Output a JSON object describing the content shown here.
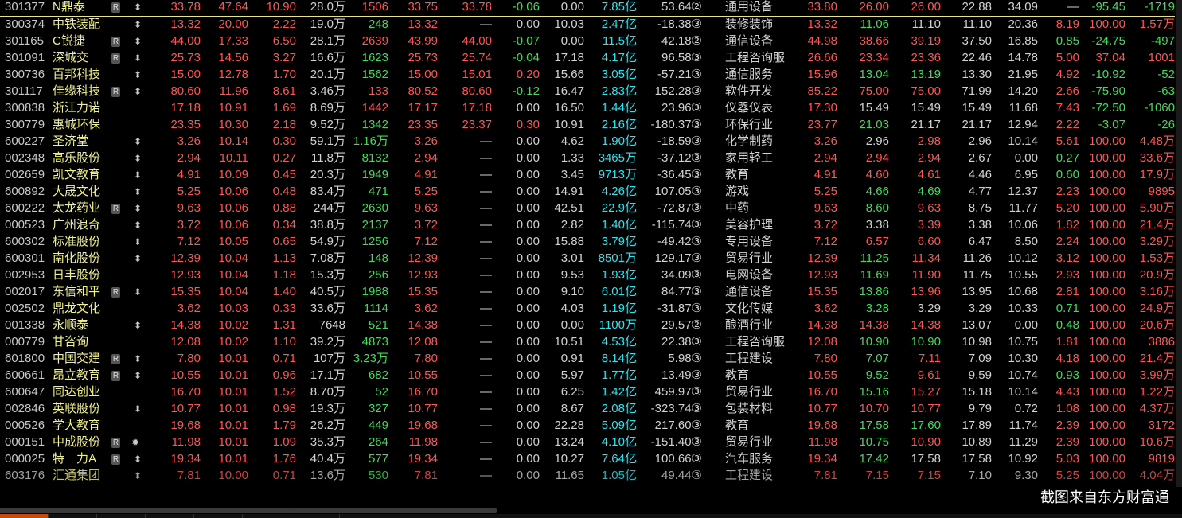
{
  "colors": {
    "up": "#ff5555",
    "down": "#3fdc5a",
    "flat": "#d2d2d2",
    "market_cap": "#22e8f2",
    "name": "#f2f28a",
    "active_tab": "#c84a0a"
  },
  "badge_label": "R",
  "watermark": "截图来自东方财富通",
  "rows": [
    [
      "301377",
      "N鼎泰",
      true,
      "updown",
      "33.78",
      "47.64",
      "10.90",
      "28.0万",
      "1506",
      "up",
      "33.75",
      "33.78",
      "-0.06",
      "0.00",
      "7.85亿",
      "53.64",
      "②",
      "通用设备",
      "33.80",
      "26.00",
      "26.00",
      "22.88",
      "34.09",
      "—",
      "-95.45",
      "-1719"
    ],
    [
      "300374",
      "中铁装配",
      false,
      "updown",
      "13.32",
      "20.00",
      "2.22",
      "19.0万",
      "248",
      "down",
      "13.32",
      "—",
      "0.00",
      "10.03",
      "2.47亿",
      "-18.38",
      "③",
      "装修装饰",
      "13.32",
      "11.06",
      "11.10",
      "11.10",
      "20.36",
      "8.19",
      "100.00",
      "1.57万"
    ],
    [
      "301165",
      "C锐捷",
      true,
      "updown",
      "44.00",
      "17.33",
      "6.50",
      "28.1万",
      "2639",
      "up",
      "43.99",
      "44.00",
      "-0.07",
      "0.00",
      "11.5亿",
      "42.18",
      "②",
      "通信设备",
      "44.98",
      "38.66",
      "39.19",
      "37.50",
      "16.85",
      "0.85",
      "-24.75",
      "-497"
    ],
    [
      "301091",
      "深城交",
      true,
      "updown",
      "25.73",
      "14.56",
      "3.27",
      "16.6万",
      "1623",
      "down",
      "25.73",
      "25.74",
      "-0.04",
      "17.18",
      "4.17亿",
      "96.58",
      "③",
      "工程咨询服",
      "26.66",
      "23.34",
      "23.36",
      "22.46",
      "14.78",
      "5.00",
      "37.04",
      "1001"
    ],
    [
      "300736",
      "百邦科技",
      false,
      "updown",
      "15.00",
      "12.78",
      "1.70",
      "20.1万",
      "1562",
      "down",
      "15.00",
      "15.01",
      "0.20",
      "15.66",
      "3.05亿",
      "-57.21",
      "③",
      "通信服务",
      "15.96",
      "13.04",
      "13.19",
      "13.30",
      "21.95",
      "4.92",
      "-10.92",
      "-52"
    ],
    [
      "301117",
      "佳缘科技",
      true,
      "updown",
      "80.60",
      "11.96",
      "8.61",
      "3.46万",
      "133",
      "up",
      "80.52",
      "80.60",
      "-0.12",
      "16.47",
      "2.83亿",
      "152.28",
      "③",
      "软件开发",
      "85.22",
      "75.00",
      "75.00",
      "71.99",
      "14.20",
      "2.66",
      "-75.90",
      "-63"
    ],
    [
      "300838",
      "浙江力诺",
      false,
      "",
      "17.18",
      "10.91",
      "1.69",
      "8.69万",
      "1442",
      "up",
      "17.17",
      "17.18",
      "0.00",
      "16.50",
      "1.44亿",
      "23.96",
      "③",
      "仪器仪表",
      "17.30",
      "15.49",
      "15.49",
      "15.49",
      "11.68",
      "7.43",
      "-72.50",
      "-1060"
    ],
    [
      "300779",
      "惠城环保",
      false,
      "",
      "23.35",
      "10.30",
      "2.18",
      "9.52万",
      "1342",
      "down",
      "23.35",
      "23.37",
      "0.30",
      "10.91",
      "2.16亿",
      "-180.37",
      "③",
      "环保行业",
      "23.77",
      "21.03",
      "21.17",
      "21.17",
      "12.94",
      "2.22",
      "-3.07",
      "-26"
    ],
    [
      "600227",
      "圣济堂",
      false,
      "updown",
      "3.26",
      "10.14",
      "0.30",
      "59.1万",
      "1.16万",
      "down",
      "3.26",
      "—",
      "0.00",
      "4.62",
      "1.90亿",
      "-18.59",
      "③",
      "化学制药",
      "3.26",
      "2.96",
      "2.98",
      "2.96",
      "10.14",
      "5.61",
      "100.00",
      "4.48万"
    ],
    [
      "002348",
      "高乐股份",
      false,
      "updown",
      "2.94",
      "10.11",
      "0.27",
      "11.8万",
      "8132",
      "down",
      "2.94",
      "—",
      "0.00",
      "1.33",
      "3465万",
      "-37.12",
      "③",
      "家用轻工",
      "2.94",
      "2.94",
      "2.94",
      "2.67",
      "0.00",
      "0.27",
      "100.00",
      "33.6万"
    ],
    [
      "002659",
      "凯文教育",
      false,
      "updown",
      "4.91",
      "10.09",
      "0.45",
      "20.3万",
      "1949",
      "down",
      "4.91",
      "—",
      "0.00",
      "3.45",
      "9713万",
      "-36.45",
      "③",
      "教育",
      "4.91",
      "4.60",
      "4.61",
      "4.46",
      "6.95",
      "0.60",
      "100.00",
      "17.9万"
    ],
    [
      "600892",
      "大晟文化",
      false,
      "updown",
      "5.25",
      "10.06",
      "0.48",
      "83.4万",
      "471",
      "down",
      "5.25",
      "—",
      "0.00",
      "14.91",
      "4.26亿",
      "107.05",
      "③",
      "游戏",
      "5.25",
      "4.66",
      "4.69",
      "4.77",
      "12.37",
      "2.23",
      "100.00",
      "9895"
    ],
    [
      "600222",
      "太龙药业",
      true,
      "updown",
      "9.63",
      "10.06",
      "0.88",
      "244万",
      "2630",
      "down",
      "9.63",
      "—",
      "0.00",
      "42.51",
      "22.9亿",
      "-72.87",
      "③",
      "中药",
      "9.63",
      "8.60",
      "9.63",
      "8.75",
      "11.77",
      "5.20",
      "100.00",
      "5.90万"
    ],
    [
      "000523",
      "广州浪奇",
      false,
      "updown",
      "3.72",
      "10.06",
      "0.34",
      "38.8万",
      "2137",
      "down",
      "3.72",
      "—",
      "0.00",
      "2.82",
      "1.40亿",
      "-115.74",
      "③",
      "美容护理",
      "3.72",
      "3.38",
      "3.39",
      "3.38",
      "10.06",
      "1.82",
      "100.00",
      "21.4万"
    ],
    [
      "600302",
      "标准股份",
      false,
      "updown",
      "7.12",
      "10.05",
      "0.65",
      "54.9万",
      "1256",
      "down",
      "7.12",
      "—",
      "0.00",
      "15.88",
      "3.79亿",
      "-49.42",
      "③",
      "专用设备",
      "7.12",
      "6.57",
      "6.60",
      "6.47",
      "8.50",
      "2.24",
      "100.00",
      "3.29万"
    ],
    [
      "600301",
      "南化股份",
      false,
      "updown",
      "12.39",
      "10.04",
      "1.13",
      "7.08万",
      "148",
      "down",
      "12.39",
      "—",
      "0.00",
      "3.01",
      "8501万",
      "129.17",
      "③",
      "贸易行业",
      "12.39",
      "11.25",
      "11.34",
      "11.26",
      "10.12",
      "3.12",
      "100.00",
      "1.53万"
    ],
    [
      "002953",
      "日丰股份",
      false,
      "",
      "12.93",
      "10.04",
      "1.18",
      "15.3万",
      "256",
      "down",
      "12.93",
      "—",
      "0.00",
      "9.53",
      "1.93亿",
      "34.09",
      "③",
      "电网设备",
      "12.93",
      "11.69",
      "11.90",
      "11.75",
      "10.55",
      "2.93",
      "100.00",
      "20.9万"
    ],
    [
      "002017",
      "东信和平",
      true,
      "updown",
      "15.35",
      "10.04",
      "1.40",
      "40.5万",
      "1988",
      "down",
      "15.35",
      "—",
      "0.00",
      "9.10",
      "6.01亿",
      "84.77",
      "③",
      "通信设备",
      "15.35",
      "13.86",
      "13.96",
      "13.95",
      "10.68",
      "2.81",
      "100.00",
      "3.16万"
    ],
    [
      "002502",
      "鼎龙文化",
      false,
      "",
      "3.62",
      "10.03",
      "0.33",
      "33.6万",
      "1114",
      "down",
      "3.62",
      "—",
      "0.00",
      "4.03",
      "1.19亿",
      "-31.87",
      "③",
      "文化传媒",
      "3.62",
      "3.28",
      "3.29",
      "3.29",
      "10.33",
      "0.71",
      "100.00",
      "24.9万"
    ],
    [
      "001338",
      "永顺泰",
      false,
      "updown",
      "14.38",
      "10.02",
      "1.31",
      "7648",
      "521",
      "down",
      "14.38",
      "—",
      "0.00",
      "0.00",
      "1100万",
      "29.57",
      "②",
      "酿酒行业",
      "14.38",
      "14.38",
      "14.38",
      "13.07",
      "0.00",
      "0.48",
      "100.00",
      "20.6万"
    ],
    [
      "000779",
      "甘咨询",
      false,
      "",
      "12.08",
      "10.02",
      "1.10",
      "39.2万",
      "4873",
      "down",
      "12.08",
      "—",
      "0.00",
      "10.51",
      "4.53亿",
      "22.38",
      "③",
      "工程咨询服",
      "12.08",
      "10.90",
      "10.90",
      "10.98",
      "10.75",
      "1.81",
      "100.00",
      "3886"
    ],
    [
      "601800",
      "中国交建",
      true,
      "updown",
      "7.80",
      "10.01",
      "0.71",
      "107万",
      "3.23万",
      "down",
      "7.80",
      "—",
      "0.00",
      "0.91",
      "8.14亿",
      "5.98",
      "③",
      "工程建设",
      "7.80",
      "7.07",
      "7.11",
      "7.09",
      "10.30",
      "4.18",
      "100.00",
      "21.4万"
    ],
    [
      "600661",
      "昂立教育",
      true,
      "updown",
      "10.55",
      "10.01",
      "0.96",
      "17.1万",
      "682",
      "down",
      "10.55",
      "—",
      "0.00",
      "5.97",
      "1.77亿",
      "13.49",
      "③",
      "教育",
      "10.55",
      "9.52",
      "9.61",
      "9.59",
      "10.74",
      "0.93",
      "100.00",
      "3.99万"
    ],
    [
      "600647",
      "同达创业",
      false,
      "",
      "16.70",
      "10.01",
      "1.52",
      "8.70万",
      "52",
      "down",
      "16.70",
      "—",
      "0.00",
      "6.25",
      "1.42亿",
      "459.97",
      "③",
      "贸易行业",
      "16.70",
      "15.16",
      "15.27",
      "15.18",
      "10.14",
      "4.43",
      "100.00",
      "1.22万"
    ],
    [
      "002846",
      "英联股份",
      false,
      "updown",
      "10.77",
      "10.01",
      "0.98",
      "19.3万",
      "327",
      "down",
      "10.77",
      "—",
      "0.00",
      "8.67",
      "2.08亿",
      "-323.74",
      "③",
      "包装材料",
      "10.77",
      "10.70",
      "10.77",
      "9.79",
      "0.72",
      "1.08",
      "100.00",
      "4.37万"
    ],
    [
      "000526",
      "学大教育",
      false,
      "",
      "19.68",
      "10.01",
      "1.79",
      "26.2万",
      "449",
      "down",
      "19.68",
      "—",
      "0.00",
      "22.28",
      "5.09亿",
      "217.60",
      "③",
      "教育",
      "19.68",
      "17.58",
      "17.60",
      "17.89",
      "11.74",
      "2.39",
      "100.00",
      "3172"
    ],
    [
      "000151",
      "中成股份",
      true,
      "star",
      "11.98",
      "10.01",
      "1.09",
      "35.3万",
      "264",
      "down",
      "11.98",
      "—",
      "0.00",
      "13.24",
      "4.10亿",
      "-151.40",
      "③",
      "贸易行业",
      "11.98",
      "10.75",
      "10.90",
      "10.89",
      "11.29",
      "2.39",
      "100.00",
      "10.6万"
    ],
    [
      "000025",
      "特　力A",
      true,
      "updown",
      "19.34",
      "10.01",
      "1.76",
      "40.4万",
      "577",
      "down",
      "19.34",
      "—",
      "0.00",
      "10.27",
      "7.64亿",
      "100.66",
      "③",
      "汽车服务",
      "19.34",
      "17.42",
      "17.58",
      "17.58",
      "10.92",
      "5.03",
      "100.00",
      "9819"
    ],
    [
      "603176",
      "汇通集团",
      false,
      "updown",
      "7.81",
      "10.00",
      "0.71",
      "13.6万",
      "530",
      "down",
      "7.81",
      "—",
      "0.00",
      "11.65",
      "1.05亿",
      "49.44",
      "③",
      "工程建设",
      "7.81",
      "7.15",
      "7.15",
      "7.10",
      "9.30",
      "5.25",
      "100.00",
      "4.04万"
    ]
  ]
}
